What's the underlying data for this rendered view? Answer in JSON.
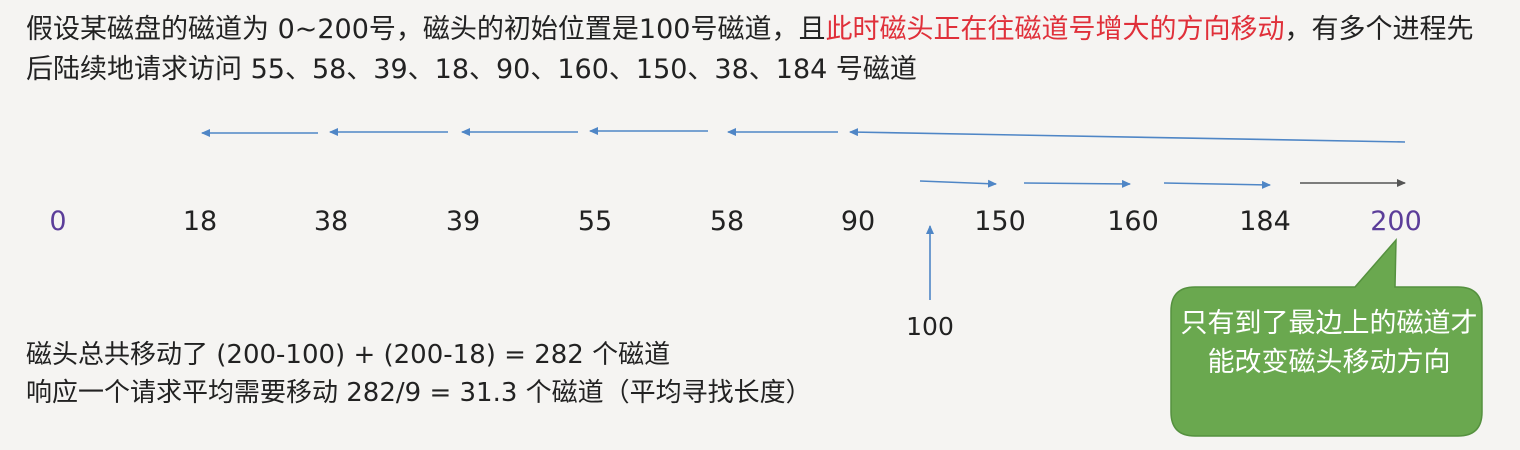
{
  "problem": {
    "part1": "假设某磁盘的磁道为 0~200号，磁头的初始位置是100号磁道，且",
    "highlight": "此时磁头正在往磁道号增大的方向移动",
    "part2": "，有多个进程先后陆续地请求访问 55、58、39、18、90、160、150、38、184 号磁道"
  },
  "ticks": [
    "0",
    "18",
    "38",
    "39",
    "55",
    "58",
    "90",
    "150",
    "160",
    "184",
    "200"
  ],
  "start_label": "100",
  "summary": {
    "line1": "磁头总共移动了  (200-100) + (200-18) = 282 个磁道",
    "line2": "响应一个请求平均需要移动 282/9 = 31.3 个磁道（平均寻找长度）"
  },
  "callout": {
    "text": "只有到了最边上的磁道才能改变磁头移动方向",
    "color": "#6aa84f"
  },
  "colors": {
    "highlight": "#e0303a",
    "edge_labels": "#5b3d99",
    "arrows": "#4f86c6",
    "last_arrow": "#555555"
  }
}
